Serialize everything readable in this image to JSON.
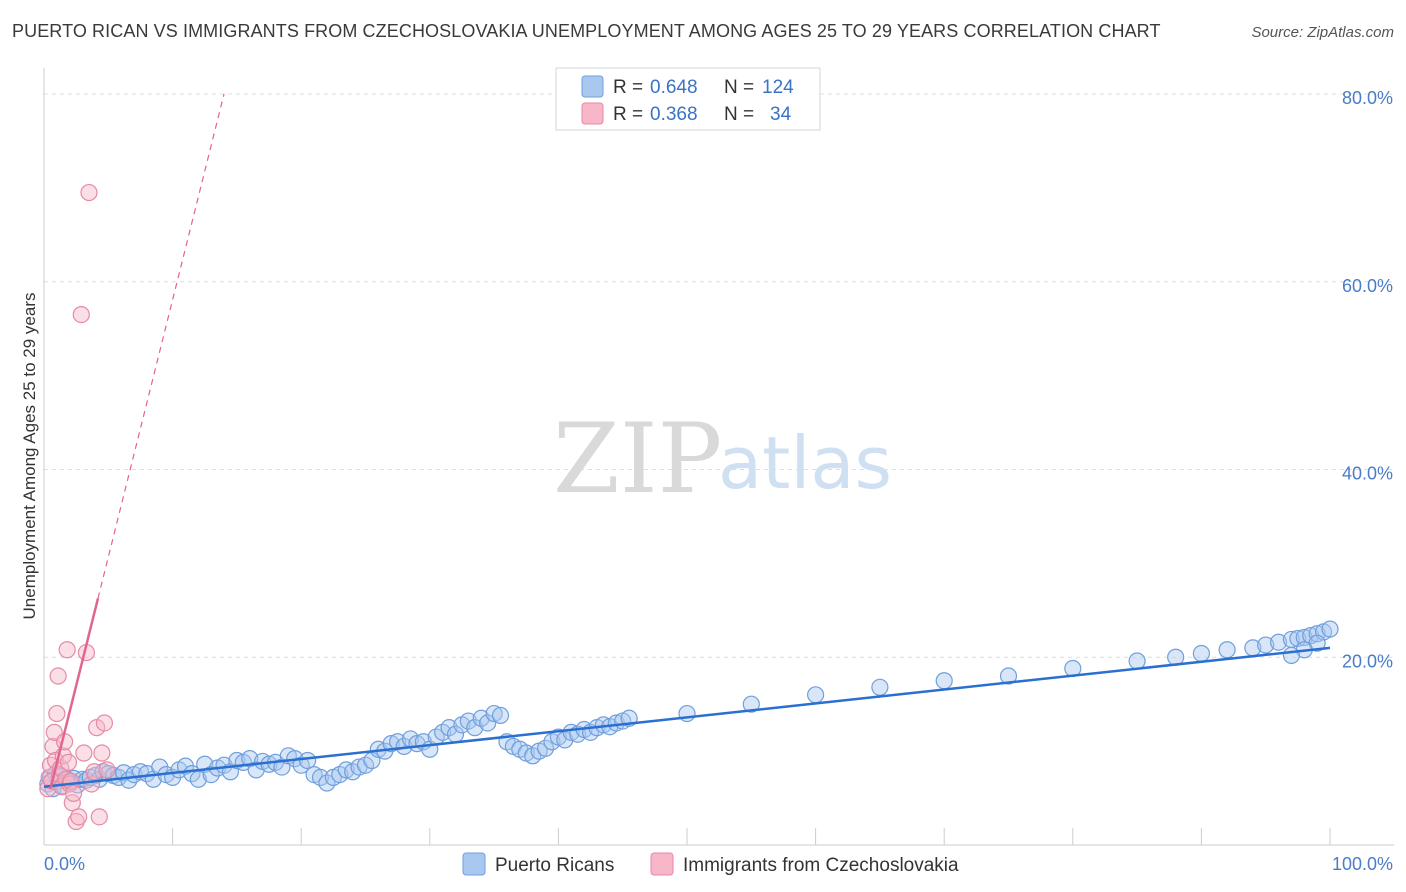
{
  "title": "PUERTO RICAN VS IMMIGRANTS FROM CZECHOSLOVAKIA UNEMPLOYMENT AMONG AGES 25 TO 29 YEARS CORRELATION CHART",
  "source": "Source: ZipAtlas.com",
  "watermark": {
    "zip": "ZIP",
    "atlas": "atlas"
  },
  "colors": {
    "blue_fill": "#a9c8ef",
    "blue_stroke": "#6f9fdc",
    "blue_line": "#2b6fd1",
    "pink_fill": "#f7b7c8",
    "pink_stroke": "#e68aa6",
    "pink_line": "#e06590",
    "grid": "#dedede",
    "tick_label": "#4a7cc7"
  },
  "legend": {
    "rows": [
      {
        "r_label": "R = ",
        "r_value": "0.648",
        "n_label": "N = ",
        "n_value": "124"
      },
      {
        "r_label": "R = ",
        "r_value": "0.368",
        "n_label": "N = ",
        "n_value": "34"
      }
    ]
  },
  "chart_data": {
    "type": "scatter",
    "title": "PUERTO RICAN VS IMMIGRANTS FROM CZECHOSLOVAKIA UNEMPLOYMENT AMONG AGES 25 TO 29 YEARS CORRELATION CHART",
    "xlabel": "",
    "ylabel": "Unemployment Among Ages 25 to 29 years",
    "xlim": [
      0,
      100
    ],
    "ylim": [
      0,
      82
    ],
    "y_ticks": [
      20,
      40,
      60,
      80
    ],
    "y_tick_labels": [
      "20.0%",
      "40.0%",
      "60.0%",
      "80.0%"
    ],
    "x_tick_labels": [
      "0.0%",
      "100.0%"
    ],
    "grid": true,
    "legend_position": "top-center",
    "series": [
      {
        "name": "Puerto Ricans",
        "r": 0.648,
        "n": 124,
        "trend": {
          "x": [
            0,
            100
          ],
          "y": [
            6.2,
            21.0
          ],
          "style": "solid"
        },
        "points": [
          [
            0.3,
            6.5
          ],
          [
            0.5,
            7.2
          ],
          [
            0.7,
            6.0
          ],
          [
            0.9,
            7.6
          ],
          [
            1.1,
            6.8
          ],
          [
            1.3,
            7.3
          ],
          [
            1.5,
            6.3
          ],
          [
            1.8,
            7.0
          ],
          [
            2.0,
            6.7
          ],
          [
            2.3,
            7.1
          ],
          [
            2.6,
            6.4
          ],
          [
            3.0,
            7.0
          ],
          [
            3.3,
            6.9
          ],
          [
            3.6,
            7.2
          ],
          [
            4.0,
            7.4
          ],
          [
            4.3,
            7.0
          ],
          [
            4.6,
            7.8
          ],
          [
            5.0,
            7.6
          ],
          [
            5.4,
            7.4
          ],
          [
            5.8,
            7.2
          ],
          [
            6.2,
            7.7
          ],
          [
            6.6,
            6.9
          ],
          [
            7.0,
            7.5
          ],
          [
            7.5,
            7.8
          ],
          [
            8.0,
            7.6
          ],
          [
            8.5,
            7.0
          ],
          [
            9.0,
            8.3
          ],
          [
            9.5,
            7.5
          ],
          [
            10.0,
            7.2
          ],
          [
            10.5,
            8.0
          ],
          [
            11.0,
            8.4
          ],
          [
            11.5,
            7.6
          ],
          [
            12.0,
            7.0
          ],
          [
            12.5,
            8.6
          ],
          [
            13.0,
            7.5
          ],
          [
            13.5,
            8.2
          ],
          [
            14.0,
            8.5
          ],
          [
            14.5,
            7.8
          ],
          [
            15.0,
            9.0
          ],
          [
            15.5,
            8.8
          ],
          [
            16.0,
            9.2
          ],
          [
            16.5,
            8.0
          ],
          [
            17.0,
            8.9
          ],
          [
            17.5,
            8.6
          ],
          [
            18.0,
            8.8
          ],
          [
            18.5,
            8.3
          ],
          [
            19.0,
            9.5
          ],
          [
            19.5,
            9.2
          ],
          [
            20.0,
            8.5
          ],
          [
            20.5,
            9.0
          ],
          [
            21.0,
            7.5
          ],
          [
            21.5,
            7.2
          ],
          [
            22.0,
            6.6
          ],
          [
            22.5,
            7.2
          ],
          [
            23.0,
            7.5
          ],
          [
            23.5,
            8.0
          ],
          [
            24.0,
            7.8
          ],
          [
            24.5,
            8.3
          ],
          [
            25.0,
            8.5
          ],
          [
            25.5,
            9.0
          ],
          [
            26.0,
            10.2
          ],
          [
            26.5,
            10.0
          ],
          [
            27.0,
            10.8
          ],
          [
            27.5,
            11.0
          ],
          [
            28.0,
            10.5
          ],
          [
            28.5,
            11.3
          ],
          [
            29.0,
            10.8
          ],
          [
            29.5,
            11.0
          ],
          [
            30.0,
            10.2
          ],
          [
            30.5,
            11.5
          ],
          [
            31.0,
            12.0
          ],
          [
            31.5,
            12.5
          ],
          [
            32.0,
            11.8
          ],
          [
            32.5,
            12.8
          ],
          [
            33.0,
            13.2
          ],
          [
            33.5,
            12.5
          ],
          [
            34.0,
            13.5
          ],
          [
            34.5,
            13.0
          ],
          [
            35.0,
            14.0
          ],
          [
            35.5,
            13.8
          ],
          [
            36.0,
            11.0
          ],
          [
            36.5,
            10.5
          ],
          [
            37.0,
            10.2
          ],
          [
            37.5,
            9.8
          ],
          [
            38.0,
            9.5
          ],
          [
            38.5,
            10.0
          ],
          [
            39.0,
            10.3
          ],
          [
            39.5,
            11.0
          ],
          [
            40.0,
            11.5
          ],
          [
            40.5,
            11.2
          ],
          [
            41.0,
            12.0
          ],
          [
            41.5,
            11.8
          ],
          [
            42.0,
            12.3
          ],
          [
            42.5,
            12.0
          ],
          [
            43.0,
            12.5
          ],
          [
            43.5,
            12.8
          ],
          [
            44.0,
            12.6
          ],
          [
            44.5,
            13.0
          ],
          [
            45.0,
            13.2
          ],
          [
            45.5,
            13.5
          ],
          [
            50.0,
            14.0
          ],
          [
            55.0,
            15.0
          ],
          [
            60.0,
            16.0
          ],
          [
            65.0,
            16.8
          ],
          [
            70.0,
            17.5
          ],
          [
            75.0,
            18.0
          ],
          [
            80.0,
            18.8
          ],
          [
            85.0,
            19.6
          ],
          [
            88.0,
            20.0
          ],
          [
            90.0,
            20.4
          ],
          [
            92.0,
            20.8
          ],
          [
            94.0,
            21.0
          ],
          [
            95.0,
            21.3
          ],
          [
            96.0,
            21.6
          ],
          [
            97.0,
            21.9
          ],
          [
            97.5,
            22.0
          ],
          [
            98.0,
            22.1
          ],
          [
            98.5,
            22.3
          ],
          [
            99.0,
            22.5
          ],
          [
            99.5,
            22.7
          ],
          [
            100.0,
            23.0
          ],
          [
            99.0,
            21.5
          ],
          [
            98.0,
            20.8
          ],
          [
            97.0,
            20.2
          ]
        ]
      },
      {
        "name": "Immigrants from Czechoslovakia",
        "r": 0.368,
        "n": 34,
        "trend": {
          "x": [
            0.5,
            14.0
          ],
          "y": [
            6.0,
            80.0
          ],
          "solid_until_x": 4.2,
          "style": "solid-then-dashed"
        },
        "points": [
          [
            0.3,
            6.0
          ],
          [
            0.4,
            7.2
          ],
          [
            0.5,
            8.5
          ],
          [
            0.6,
            6.8
          ],
          [
            0.7,
            10.5
          ],
          [
            0.8,
            12.0
          ],
          [
            0.9,
            9.0
          ],
          [
            1.0,
            14.0
          ],
          [
            1.1,
            18.0
          ],
          [
            1.2,
            7.5
          ],
          [
            1.3,
            8.2
          ],
          [
            1.4,
            6.2
          ],
          [
            1.5,
            9.5
          ],
          [
            1.6,
            11.0
          ],
          [
            1.7,
            7.0
          ],
          [
            1.8,
            20.8
          ],
          [
            1.9,
            8.8
          ],
          [
            2.0,
            6.5
          ],
          [
            2.1,
            6.8
          ],
          [
            2.2,
            4.5
          ],
          [
            2.3,
            5.5
          ],
          [
            2.5,
            2.5
          ],
          [
            2.7,
            3.0
          ],
          [
            2.9,
            56.5
          ],
          [
            3.1,
            9.8
          ],
          [
            3.3,
            20.5
          ],
          [
            3.5,
            69.5
          ],
          [
            3.7,
            6.5
          ],
          [
            3.9,
            7.8
          ],
          [
            4.1,
            12.5
          ],
          [
            4.3,
            3.0
          ],
          [
            4.5,
            9.8
          ],
          [
            4.7,
            13.0
          ],
          [
            4.9,
            8.0
          ]
        ]
      }
    ]
  },
  "bottom_legend": [
    "Puerto Ricans",
    "Immigrants from Czechoslovakia"
  ]
}
